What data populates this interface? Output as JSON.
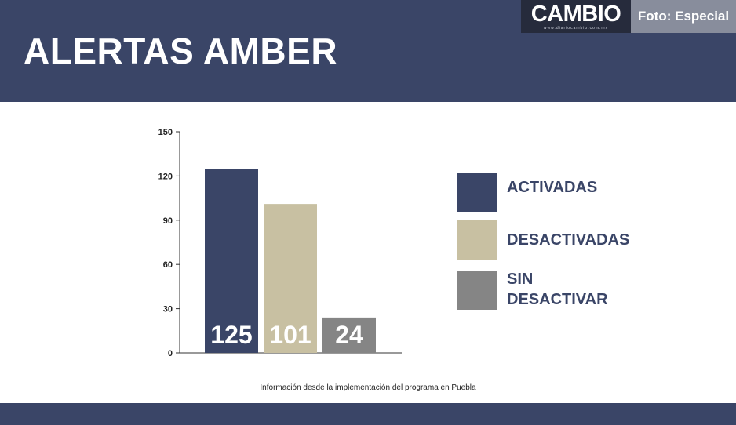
{
  "header": {
    "title": "ALERTAS AMBER",
    "brand": "CAMBIO",
    "brand_url": "www.diariocambio.com.mx",
    "photo_credit": "Foto: Especial"
  },
  "colors": {
    "band": "#3a4567",
    "activadas": "#3a4567",
    "desactivadas": "#c8c0a2",
    "sin_desactivar": "#858585"
  },
  "chart_data": {
    "type": "bar",
    "categories": [
      "ACTIVADAS",
      "DESACTIVADAS",
      "SIN DESACTIVAR"
    ],
    "values": [
      125,
      101,
      24
    ],
    "ylim": [
      0,
      150
    ],
    "yticks": [
      0,
      30,
      60,
      90,
      120,
      150
    ],
    "data_labels": [
      "125",
      "101",
      "24"
    ],
    "legend": [
      "ACTIVADAS",
      "DESACTIVADAS",
      "SIN\nDESACTIVAR"
    ],
    "legend_position": "right",
    "grid": false
  },
  "footnote": "Información desde la implementación del programa en Puebla"
}
